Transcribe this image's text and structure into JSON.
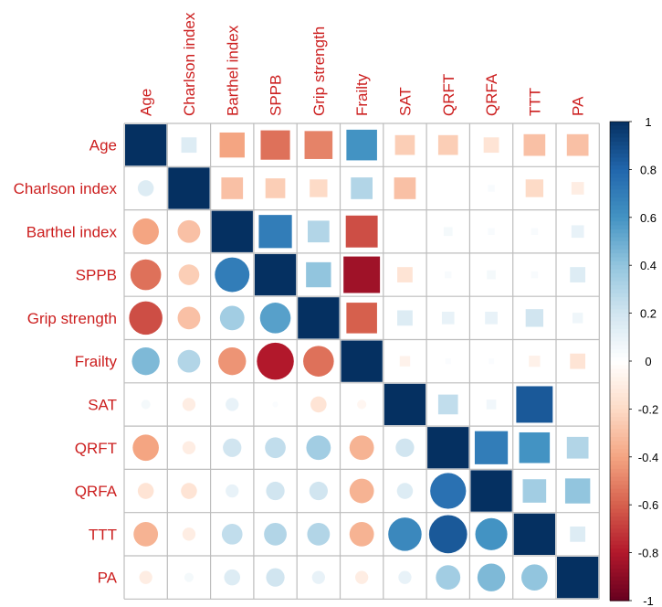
{
  "chart_data": {
    "type": "heatmap",
    "style": "correlation-matrix (lower triangle circles, upper triangle squares)",
    "labels": [
      "Age",
      "Charlson index",
      "Barthel index",
      "SPPB",
      "Grip strength",
      "Frailty",
      "SAT",
      "QRFT",
      "QRFA",
      "TTT",
      "PA"
    ],
    "matrix": [
      [
        1.0,
        0.15,
        -0.4,
        -0.55,
        -0.5,
        0.6,
        -0.25,
        -0.25,
        -0.15,
        -0.3,
        -0.3
      ],
      [
        0.15,
        1.0,
        -0.3,
        -0.25,
        -0.2,
        0.3,
        -0.3,
        0.0,
        0.03,
        -0.2,
        -0.1
      ],
      [
        -0.4,
        -0.3,
        1.0,
        0.7,
        0.3,
        -0.65,
        0.0,
        0.05,
        0.03,
        0.03,
        0.1
      ],
      [
        -0.55,
        -0.25,
        0.7,
        1.0,
        0.4,
        -0.85,
        -0.15,
        0.03,
        0.05,
        0.03,
        0.15
      ],
      [
        -0.65,
        -0.3,
        0.35,
        0.55,
        1.0,
        -0.6,
        0.15,
        0.1,
        0.1,
        0.2,
        0.07
      ],
      [
        0.45,
        0.3,
        -0.45,
        -0.8,
        -0.55,
        1.0,
        -0.07,
        0.02,
        0.02,
        -0.08,
        -0.15
      ],
      [
        0.05,
        -0.1,
        0.1,
        0.02,
        -0.15,
        -0.05,
        1.0,
        0.25,
        0.06,
        0.85,
        0.0
      ],
      [
        -0.4,
        -0.1,
        0.2,
        0.25,
        0.35,
        -0.35,
        0.2,
        1.0,
        0.7,
        0.6,
        0.3
      ],
      [
        -0.15,
        -0.15,
        0.1,
        0.2,
        0.2,
        -0.35,
        0.15,
        0.75,
        1.0,
        0.35,
        0.4
      ],
      [
        -0.35,
        -0.1,
        0.25,
        0.3,
        0.3,
        -0.35,
        0.65,
        0.85,
        0.6,
        1.0,
        0.15
      ],
      [
        -0.1,
        0.05,
        0.15,
        0.2,
        0.1,
        -0.1,
        0.1,
        0.35,
        0.45,
        0.4,
        1.0
      ]
    ],
    "colorbar": {
      "range": [
        -1,
        1
      ],
      "ticks": [
        1,
        0.8,
        0.6,
        0.4,
        0.2,
        0,
        -0.2,
        -0.4,
        -0.6,
        -0.8,
        -1
      ]
    },
    "colors": {
      "label": "#cc1f1f",
      "grid": "#bdbdbd",
      "scale": [
        "#67001f",
        "#b2182b",
        "#d6604d",
        "#f4a582",
        "#fddbc7",
        "#ffffff",
        "#d1e5f0",
        "#92c5de",
        "#4393c3",
        "#2166ac",
        "#053061"
      ]
    }
  }
}
